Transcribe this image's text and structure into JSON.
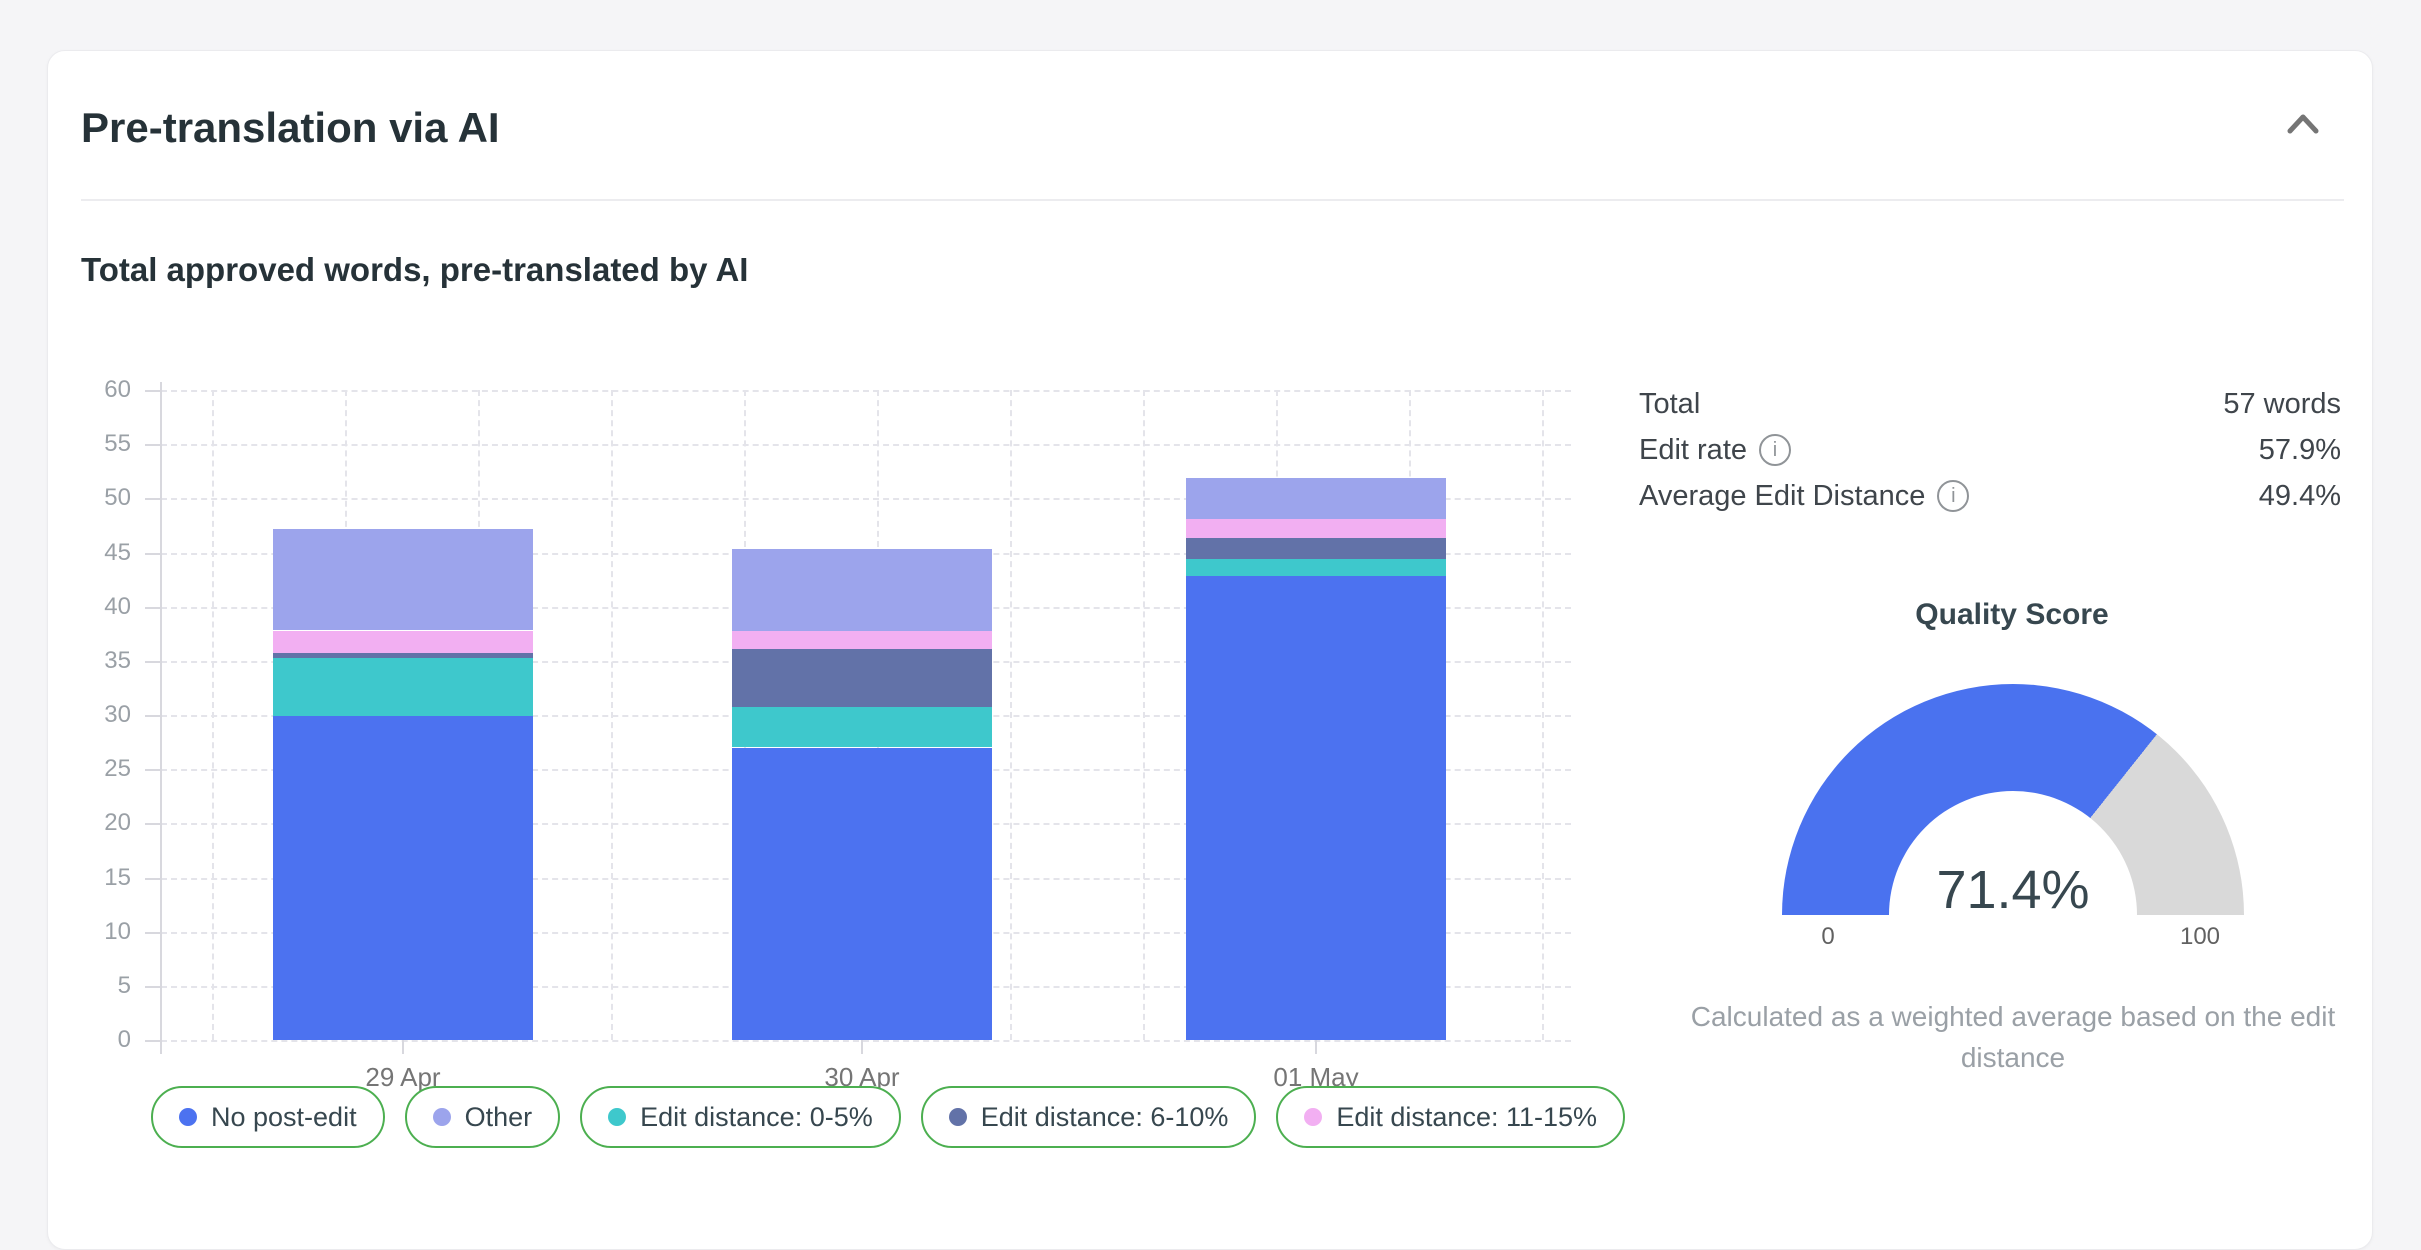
{
  "page": {
    "background": "#F5F5F7",
    "card_background": "#FFFFFF"
  },
  "card": {
    "title": "Pre-translation via AI",
    "section_title": "Total approved words, pre-translated by AI"
  },
  "icons": {
    "info": "i",
    "collapse": "chevron-up"
  },
  "chart_data": {
    "type": "bar",
    "stacked": true,
    "title": "Total approved words, pre-translated by AI",
    "categories": [
      "29 Apr",
      "30 Apr",
      "01 May"
    ],
    "series": [
      {
        "name": "No post-edit",
        "color": "#4C72F0",
        "values": [
          29.9,
          27.0,
          42.8
        ]
      },
      {
        "name": "Edit distance: 0-5%",
        "color": "#3EC8CC",
        "values": [
          5.4,
          3.7,
          1.6
        ]
      },
      {
        "name": "Edit distance: 6-10%",
        "color": "#6272A8",
        "values": [
          0.4,
          5.4,
          1.9
        ]
      },
      {
        "name": "Edit distance: 11-15%",
        "color": "#F2AFF2",
        "values": [
          2.1,
          1.7,
          1.8
        ]
      },
      {
        "name": "Other",
        "color": "#9CA4EC",
        "values": [
          9.4,
          7.5,
          3.8
        ]
      }
    ],
    "bar_totals": [
      47.2,
      45.3,
      51.9
    ],
    "ylim": [
      0,
      60
    ],
    "y_tick_step": 5,
    "grid": "dashed",
    "legend_position": "bottom"
  },
  "legend": {
    "border_color": "#4CAF50",
    "items": [
      {
        "label": "No post-edit",
        "color": "#4C72F0"
      },
      {
        "label": "Other",
        "color": "#9CA4EC"
      },
      {
        "label": "Edit distance: 0-5%",
        "color": "#3EC8CC"
      },
      {
        "label": "Edit distance: 6-10%",
        "color": "#6272A8"
      },
      {
        "label": "Edit distance: 11-15%",
        "color": "#F2AFF2"
      }
    ]
  },
  "stats": {
    "rows": [
      {
        "label": "Total",
        "value": "57 words",
        "info": false
      },
      {
        "label": "Edit rate",
        "value": "57.9%",
        "info": true
      },
      {
        "label": "Average Edit Distance",
        "value": "49.4%",
        "info": true
      }
    ]
  },
  "gauge": {
    "title": "Quality Score",
    "value": 71.4,
    "value_label": "71.4%",
    "min_label": "0",
    "max_label": "100",
    "color": "#4A72EF",
    "track_color": "#D9D9D9",
    "caption": "Calculated as a weighted average based on the edit distance"
  }
}
